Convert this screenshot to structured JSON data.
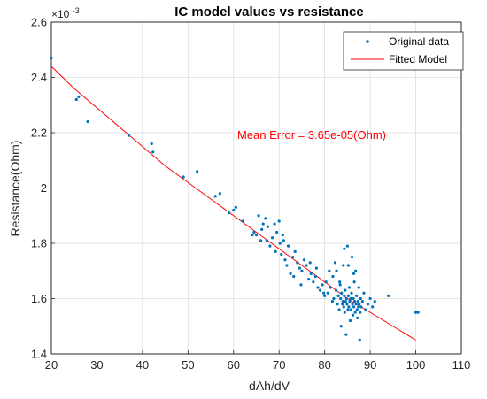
{
  "chart_data": {
    "type": "scatter",
    "title": "IC model values vs resistance",
    "xlabel": "dAh/dV",
    "ylabel": "Resistance(Ohm)",
    "y_exponent_label": "×10",
    "y_exponent_power": "-3",
    "xlim": [
      20,
      110
    ],
    "ylim": [
      1.4,
      2.6
    ],
    "y_scale_factor": 0.001,
    "xticks": [
      20,
      30,
      40,
      50,
      60,
      70,
      80,
      90,
      100,
      110
    ],
    "xtick_labels": [
      "20",
      "30",
      "40",
      "50",
      "60",
      "70",
      "80",
      "90",
      "100",
      "110"
    ],
    "yticks": [
      1.4,
      1.6,
      1.8,
      2.0,
      2.2,
      2.4,
      2.6
    ],
    "ytick_labels": [
      "1.4",
      "1.6",
      "1.8",
      "2",
      "2.2",
      "2.4",
      "2.6"
    ],
    "grid": true,
    "legend_position": "top-right",
    "colors": {
      "scatter": "#0072BD",
      "fit": "#FF0000",
      "annotation": "#FF0000",
      "grid": "#dcdcdc",
      "axes": "#262626"
    },
    "annotation": "Mean Error = 3.65e-05(Ohm)",
    "series": [
      {
        "name": "Original data",
        "kind": "scatter",
        "points": [
          [
            20,
            2.47
          ],
          [
            25.5,
            2.32
          ],
          [
            26,
            2.33
          ],
          [
            28,
            2.24
          ],
          [
            37,
            2.19
          ],
          [
            42,
            2.16
          ],
          [
            42.3,
            2.13
          ],
          [
            49,
            2.04
          ],
          [
            52,
            2.06
          ],
          [
            56,
            1.97
          ],
          [
            57,
            1.98
          ],
          [
            59,
            1.91
          ],
          [
            60,
            1.92
          ],
          [
            60.5,
            1.93
          ],
          [
            62,
            1.88
          ],
          [
            64.5,
            1.84
          ],
          [
            65,
            1.83
          ],
          [
            65.5,
            1.9
          ],
          [
            66,
            1.81
          ],
          [
            66.5,
            1.87
          ],
          [
            67,
            1.89
          ],
          [
            67.5,
            1.86
          ],
          [
            68,
            1.79
          ],
          [
            68.5,
            1.82
          ],
          [
            69,
            1.87
          ],
          [
            69.5,
            1.84
          ],
          [
            70,
            1.88
          ],
          [
            70.2,
            1.8
          ],
          [
            70.5,
            1.76
          ],
          [
            71,
            1.81
          ],
          [
            71.3,
            1.74
          ],
          [
            71.7,
            1.72
          ],
          [
            72,
            1.79
          ],
          [
            72.5,
            1.69
          ],
          [
            73,
            1.75
          ],
          [
            73.5,
            1.77
          ],
          [
            74,
            1.73
          ],
          [
            74.5,
            1.71
          ],
          [
            75,
            1.7
          ],
          [
            75.5,
            1.74
          ],
          [
            76,
            1.72
          ],
          [
            76.5,
            1.67
          ],
          [
            77,
            1.69
          ],
          [
            77.5,
            1.66
          ],
          [
            78,
            1.68
          ],
          [
            78.5,
            1.64
          ],
          [
            79,
            1.63
          ],
          [
            79.5,
            1.65
          ],
          [
            80,
            1.61
          ],
          [
            80.3,
            1.66
          ],
          [
            80.7,
            1.62
          ],
          [
            81,
            1.7
          ],
          [
            81.3,
            1.64
          ],
          [
            81.7,
            1.59
          ],
          [
            82,
            1.6
          ],
          [
            82.3,
            1.73
          ],
          [
            82.5,
            1.63
          ],
          [
            82.8,
            1.58
          ],
          [
            83,
            1.61
          ],
          [
            83.2,
            1.56
          ],
          [
            83.3,
            1.66
          ],
          [
            83.5,
            1.6
          ],
          [
            83.7,
            1.62
          ],
          [
            83.9,
            1.58
          ],
          [
            84,
            1.59
          ],
          [
            84.1,
            1.72
          ],
          [
            84.2,
            1.57
          ],
          [
            84.3,
            1.61
          ],
          [
            84.4,
            1.55
          ],
          [
            84.5,
            1.63
          ],
          [
            84.6,
            1.59
          ],
          [
            84.7,
            1.47
          ],
          [
            84.8,
            1.6
          ],
          [
            84.9,
            1.58
          ],
          [
            85,
            1.79
          ],
          [
            85.1,
            1.56
          ],
          [
            85.2,
            1.61
          ],
          [
            85.3,
            1.57
          ],
          [
            85.4,
            1.64
          ],
          [
            85.5,
            1.59
          ],
          [
            85.6,
            1.52
          ],
          [
            85.7,
            1.6
          ],
          [
            85.8,
            1.56
          ],
          [
            85.9,
            1.62
          ],
          [
            86,
            1.75
          ],
          [
            86.1,
            1.58
          ],
          [
            86.2,
            1.54
          ],
          [
            86.3,
            1.6
          ],
          [
            86.4,
            1.57
          ],
          [
            86.5,
            1.66
          ],
          [
            86.6,
            1.59
          ],
          [
            86.7,
            1.55
          ],
          [
            86.8,
            1.7
          ],
          [
            86.9,
            1.58
          ],
          [
            87,
            1.61
          ],
          [
            87.1,
            1.56
          ],
          [
            87.2,
            1.53
          ],
          [
            87.3,
            1.59
          ],
          [
            87.4,
            1.57
          ],
          [
            87.5,
            1.64
          ],
          [
            87.6,
            1.58
          ],
          [
            87.7,
            1.45
          ],
          [
            87.8,
            1.55
          ],
          [
            87.9,
            1.6
          ],
          [
            88,
            1.57
          ],
          [
            88.3,
            1.59
          ],
          [
            88.6,
            1.62
          ],
          [
            89,
            1.56
          ],
          [
            89.5,
            1.58
          ],
          [
            90,
            1.6
          ],
          [
            90.5,
            1.57
          ],
          [
            91,
            1.59
          ],
          [
            94,
            1.61
          ],
          [
            100,
            1.55
          ],
          [
            100.5,
            1.55
          ],
          [
            83.6,
            1.5
          ],
          [
            84.3,
            1.78
          ],
          [
            86.4,
            1.69
          ],
          [
            85.2,
            1.72
          ],
          [
            81.8,
            1.68
          ],
          [
            82.6,
            1.7
          ],
          [
            83.4,
            1.65
          ],
          [
            79.8,
            1.62
          ],
          [
            78.2,
            1.71
          ],
          [
            76.8,
            1.73
          ],
          [
            74.8,
            1.65
          ],
          [
            73.2,
            1.68
          ],
          [
            70.8,
            1.83
          ],
          [
            69.2,
            1.77
          ],
          [
            67.3,
            1.81
          ],
          [
            66.2,
            1.85
          ],
          [
            64.1,
            1.83
          ]
        ]
      },
      {
        "name": "Fitted Model",
        "kind": "line",
        "points": [
          [
            20,
            2.44
          ],
          [
            25,
            2.36
          ],
          [
            30,
            2.29
          ],
          [
            35,
            2.22
          ],
          [
            40,
            2.15
          ],
          [
            45,
            2.08
          ],
          [
            50,
            2.02
          ],
          [
            55,
            1.96
          ],
          [
            60,
            1.9
          ],
          [
            65,
            1.84
          ],
          [
            70,
            1.78
          ],
          [
            75,
            1.72
          ],
          [
            80,
            1.66
          ],
          [
            85,
            1.6
          ],
          [
            90,
            1.55
          ],
          [
            95,
            1.5
          ],
          [
            100,
            1.45
          ]
        ]
      }
    ]
  }
}
